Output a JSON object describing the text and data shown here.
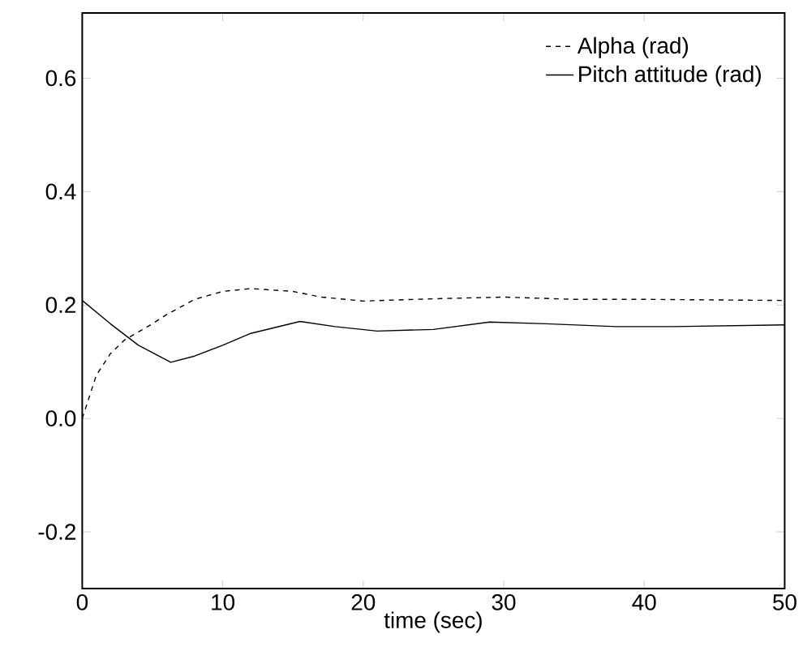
{
  "chart_data": {
    "type": "line",
    "xlabel": "time (sec)",
    "xlim": [
      0,
      50
    ],
    "xticks": [
      0,
      10,
      20,
      30,
      40,
      50
    ],
    "ylim": [
      -0.3,
      0.715
    ],
    "yticks": [
      {
        "value": -0.2,
        "label": "-0.2"
      },
      {
        "value": 0,
        "label": "0.0"
      },
      {
        "value": 0.2,
        "label": "0.2"
      },
      {
        "value": 0.4,
        "label": "0.4"
      },
      {
        "value": 0.6,
        "label": "0.6"
      }
    ],
    "grid": false,
    "legend": "top right",
    "marker": "none",
    "series": [
      {
        "name": "Alpha (rad)",
        "color": "#000000",
        "line_style": "dashed",
        "x": [
          0,
          1,
          2,
          3,
          5,
          6,
          8,
          10,
          12,
          15,
          17,
          20,
          25,
          30,
          35,
          40,
          50
        ],
        "values": [
          0,
          0.076,
          0.114,
          0.138,
          0.167,
          0.183,
          0.21,
          0.224,
          0.229,
          0.224,
          0.214,
          0.207,
          0.211,
          0.214,
          0.21,
          0.21,
          0.208
        ]
      },
      {
        "name": "Pitch attitude (rad)",
        "color": "#000000",
        "line_style": "solid",
        "x": [
          0,
          2,
          4,
          6.3,
          8,
          10,
          12,
          15.5,
          18,
          21,
          25,
          29,
          33,
          38,
          42,
          50
        ],
        "values": [
          0.208,
          0.167,
          0.129,
          0.099,
          0.11,
          0.129,
          0.15,
          0.171,
          0.162,
          0.154,
          0.157,
          0.17,
          0.167,
          0.162,
          0.162,
          0.165
        ]
      }
    ]
  }
}
